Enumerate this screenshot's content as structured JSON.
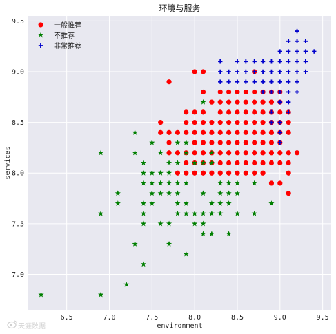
{
  "chart_data": {
    "type": "scatter",
    "title": "环境与服务",
    "xlabel": "environment",
    "ylabel": "services",
    "xlim": [
      6.05,
      9.6
    ],
    "ylim": [
      6.65,
      9.55
    ],
    "xticks": [
      6.5,
      7.0,
      7.5,
      8.0,
      8.5,
      9.0,
      9.5
    ],
    "xtick_labels": [
      "6.5",
      "7.0",
      "7.5",
      "8.0",
      "8.5",
      "9.0",
      "9.5"
    ],
    "yticks": [
      7.0,
      7.5,
      8.0,
      8.5,
      9.0,
      9.5
    ],
    "ytick_labels": [
      "7.0",
      "7.5",
      "8.0",
      "8.5",
      "9.0",
      "9.5"
    ],
    "grid": true,
    "legend_position": "top-left",
    "background_color": "#e8e8f0",
    "series": [
      {
        "name": "一般推荐",
        "marker": "circle",
        "color": "#ff0000",
        "points": [
          [
            7.6,
            8.5
          ],
          [
            7.6,
            8.4
          ],
          [
            7.7,
            8.9
          ],
          [
            7.7,
            8.4
          ],
          [
            7.7,
            8.3
          ],
          [
            7.7,
            8.2
          ],
          [
            7.8,
            8.4
          ],
          [
            7.8,
            8.2
          ],
          [
            7.8,
            8.0
          ],
          [
            7.9,
            8.6
          ],
          [
            7.9,
            8.5
          ],
          [
            7.9,
            8.4
          ],
          [
            7.9,
            8.2
          ],
          [
            7.9,
            8.1
          ],
          [
            7.9,
            8.0
          ],
          [
            8.0,
            9.0
          ],
          [
            8.0,
            8.6
          ],
          [
            8.0,
            8.5
          ],
          [
            8.0,
            8.4
          ],
          [
            8.0,
            8.3
          ],
          [
            8.0,
            8.2
          ],
          [
            8.0,
            8.1
          ],
          [
            8.0,
            8.0
          ],
          [
            8.1,
            9.0
          ],
          [
            8.1,
            8.8
          ],
          [
            8.1,
            8.6
          ],
          [
            8.1,
            8.5
          ],
          [
            8.1,
            8.4
          ],
          [
            8.1,
            8.3
          ],
          [
            8.1,
            8.2
          ],
          [
            8.1,
            8.1
          ],
          [
            8.1,
            8.0
          ],
          [
            8.2,
            8.7
          ],
          [
            8.2,
            8.5
          ],
          [
            8.2,
            8.4
          ],
          [
            8.2,
            8.3
          ],
          [
            8.2,
            8.2
          ],
          [
            8.2,
            8.1
          ],
          [
            8.2,
            8.0
          ],
          [
            8.3,
            8.8
          ],
          [
            8.3,
            8.7
          ],
          [
            8.3,
            8.6
          ],
          [
            8.3,
            8.5
          ],
          [
            8.3,
            8.4
          ],
          [
            8.3,
            8.3
          ],
          [
            8.3,
            8.2
          ],
          [
            8.3,
            8.1
          ],
          [
            8.3,
            8.0
          ],
          [
            8.4,
            8.8
          ],
          [
            8.4,
            8.7
          ],
          [
            8.4,
            8.6
          ],
          [
            8.4,
            8.5
          ],
          [
            8.4,
            8.4
          ],
          [
            8.4,
            8.3
          ],
          [
            8.4,
            8.2
          ],
          [
            8.4,
            8.1
          ],
          [
            8.4,
            8.0
          ],
          [
            8.5,
            8.8
          ],
          [
            8.5,
            8.7
          ],
          [
            8.5,
            8.6
          ],
          [
            8.5,
            8.5
          ],
          [
            8.5,
            8.4
          ],
          [
            8.5,
            8.3
          ],
          [
            8.5,
            8.2
          ],
          [
            8.5,
            8.1
          ],
          [
            8.5,
            8.0
          ],
          [
            8.6,
            8.8
          ],
          [
            8.6,
            8.7
          ],
          [
            8.6,
            8.6
          ],
          [
            8.6,
            8.5
          ],
          [
            8.6,
            8.4
          ],
          [
            8.6,
            8.3
          ],
          [
            8.6,
            8.2
          ],
          [
            8.6,
            8.1
          ],
          [
            8.6,
            8.0
          ],
          [
            8.7,
            9.0
          ],
          [
            8.7,
            8.8
          ],
          [
            8.7,
            8.7
          ],
          [
            8.7,
            8.6
          ],
          [
            8.7,
            8.5
          ],
          [
            8.7,
            8.4
          ],
          [
            8.7,
            8.3
          ],
          [
            8.7,
            8.2
          ],
          [
            8.7,
            8.1
          ],
          [
            8.7,
            8.0
          ],
          [
            8.8,
            8.8
          ],
          [
            8.8,
            8.7
          ],
          [
            8.8,
            8.6
          ],
          [
            8.8,
            8.5
          ],
          [
            8.8,
            8.4
          ],
          [
            8.8,
            8.3
          ],
          [
            8.8,
            8.2
          ],
          [
            8.8,
            8.1
          ],
          [
            8.8,
            8.0
          ],
          [
            8.9,
            8.8
          ],
          [
            8.9,
            8.7
          ],
          [
            8.9,
            8.6
          ],
          [
            8.9,
            8.5
          ],
          [
            8.9,
            8.4
          ],
          [
            8.9,
            8.3
          ],
          [
            8.9,
            8.2
          ],
          [
            8.9,
            8.1
          ],
          [
            8.9,
            7.9
          ],
          [
            9.0,
            8.8
          ],
          [
            9.0,
            8.7
          ],
          [
            9.0,
            8.6
          ],
          [
            9.0,
            8.5
          ],
          [
            9.0,
            8.4
          ],
          [
            9.0,
            8.3
          ],
          [
            9.0,
            8.2
          ],
          [
            9.0,
            8.1
          ],
          [
            9.0,
            7.9
          ],
          [
            9.1,
            8.6
          ],
          [
            9.1,
            8.5
          ],
          [
            9.1,
            8.4
          ],
          [
            9.1,
            8.2
          ],
          [
            9.1,
            8.1
          ],
          [
            9.1,
            8.0
          ],
          [
            9.1,
            7.8
          ],
          [
            9.2,
            8.2
          ]
        ]
      },
      {
        "name": "不推荐",
        "marker": "star",
        "color": "#007f00",
        "points": [
          [
            6.2,
            6.8
          ],
          [
            6.9,
            8.2
          ],
          [
            6.9,
            7.6
          ],
          [
            6.9,
            6.8
          ],
          [
            7.1,
            7.8
          ],
          [
            7.1,
            7.7
          ],
          [
            7.2,
            6.9
          ],
          [
            7.3,
            8.4
          ],
          [
            7.3,
            8.2
          ],
          [
            7.3,
            7.3
          ],
          [
            7.4,
            8.1
          ],
          [
            7.4,
            8.0
          ],
          [
            7.4,
            7.9
          ],
          [
            7.4,
            7.7
          ],
          [
            7.4,
            7.6
          ],
          [
            7.4,
            7.5
          ],
          [
            7.4,
            7.1
          ],
          [
            7.5,
            8.3
          ],
          [
            7.5,
            8.0
          ],
          [
            7.5,
            7.9
          ],
          [
            7.5,
            7.8
          ],
          [
            7.5,
            7.7
          ],
          [
            7.6,
            8.2
          ],
          [
            7.6,
            8.0
          ],
          [
            7.6,
            7.9
          ],
          [
            7.6,
            7.8
          ],
          [
            7.6,
            7.5
          ],
          [
            7.7,
            8.1
          ],
          [
            7.7,
            8.0
          ],
          [
            7.7,
            7.9
          ],
          [
            7.7,
            7.8
          ],
          [
            7.7,
            7.5
          ],
          [
            7.7,
            7.3
          ],
          [
            7.8,
            8.3
          ],
          [
            7.8,
            8.1
          ],
          [
            7.8,
            7.9
          ],
          [
            7.8,
            7.8
          ],
          [
            7.8,
            7.7
          ],
          [
            7.8,
            7.6
          ],
          [
            7.9,
            8.3
          ],
          [
            7.9,
            8.2
          ],
          [
            7.9,
            7.9
          ],
          [
            7.9,
            7.7
          ],
          [
            7.9,
            7.6
          ],
          [
            7.9,
            7.2
          ],
          [
            8.0,
            8.1
          ],
          [
            8.0,
            7.6
          ],
          [
            8.0,
            7.5
          ],
          [
            8.1,
            8.7
          ],
          [
            8.1,
            8.1
          ],
          [
            8.1,
            7.8
          ],
          [
            8.1,
            7.6
          ],
          [
            8.1,
            7.5
          ],
          [
            8.1,
            7.4
          ],
          [
            8.2,
            8.2
          ],
          [
            8.2,
            8.1
          ],
          [
            8.2,
            7.7
          ],
          [
            8.2,
            7.6
          ],
          [
            8.2,
            7.4
          ],
          [
            8.3,
            7.9
          ],
          [
            8.3,
            7.8
          ],
          [
            8.3,
            7.7
          ],
          [
            8.3,
            7.6
          ],
          [
            8.4,
            7.9
          ],
          [
            8.4,
            7.8
          ],
          [
            8.4,
            7.7
          ],
          [
            8.4,
            7.4
          ],
          [
            8.5,
            7.9
          ],
          [
            8.5,
            7.8
          ],
          [
            8.5,
            7.6
          ],
          [
            8.7,
            7.9
          ],
          [
            8.7,
            7.6
          ],
          [
            8.9,
            7.7
          ]
        ]
      },
      {
        "name": "非常推荐",
        "marker": "plus",
        "color": "#0000cc",
        "points": [
          [
            8.3,
            9.1
          ],
          [
            8.3,
            9.0
          ],
          [
            8.3,
            8.9
          ],
          [
            8.4,
            9.0
          ],
          [
            8.4,
            8.9
          ],
          [
            8.5,
            9.1
          ],
          [
            8.5,
            9.0
          ],
          [
            8.5,
            8.9
          ],
          [
            8.6,
            9.1
          ],
          [
            8.6,
            9.0
          ],
          [
            8.6,
            8.9
          ],
          [
            8.7,
            9.1
          ],
          [
            8.7,
            9.0
          ],
          [
            8.7,
            8.9
          ],
          [
            8.8,
            9.1
          ],
          [
            8.8,
            9.0
          ],
          [
            8.8,
            8.9
          ],
          [
            8.8,
            8.8
          ],
          [
            8.9,
            9.1
          ],
          [
            8.9,
            9.0
          ],
          [
            8.9,
            8.9
          ],
          [
            8.9,
            8.8
          ],
          [
            8.9,
            8.6
          ],
          [
            8.9,
            8.5
          ],
          [
            9.0,
            9.2
          ],
          [
            9.0,
            9.1
          ],
          [
            9.0,
            9.0
          ],
          [
            9.0,
            8.9
          ],
          [
            9.0,
            8.8
          ],
          [
            9.0,
            8.7
          ],
          [
            9.0,
            8.5
          ],
          [
            9.0,
            8.4
          ],
          [
            9.0,
            8.3
          ],
          [
            9.1,
            9.3
          ],
          [
            9.1,
            9.2
          ],
          [
            9.1,
            9.1
          ],
          [
            9.1,
            9.0
          ],
          [
            9.1,
            8.9
          ],
          [
            9.1,
            8.8
          ],
          [
            9.1,
            8.7
          ],
          [
            9.1,
            8.6
          ],
          [
            9.2,
            9.4
          ],
          [
            9.2,
            9.3
          ],
          [
            9.2,
            9.2
          ],
          [
            9.2,
            9.1
          ],
          [
            9.2,
            9.0
          ],
          [
            9.2,
            8.9
          ],
          [
            9.2,
            8.8
          ],
          [
            9.3,
            9.3
          ],
          [
            9.3,
            9.2
          ],
          [
            9.3,
            9.1
          ],
          [
            9.3,
            9.0
          ],
          [
            9.4,
            9.2
          ]
        ]
      }
    ]
  },
  "watermark": {
    "text": "天涯数据",
    "icon": "weibo-logo-icon"
  }
}
